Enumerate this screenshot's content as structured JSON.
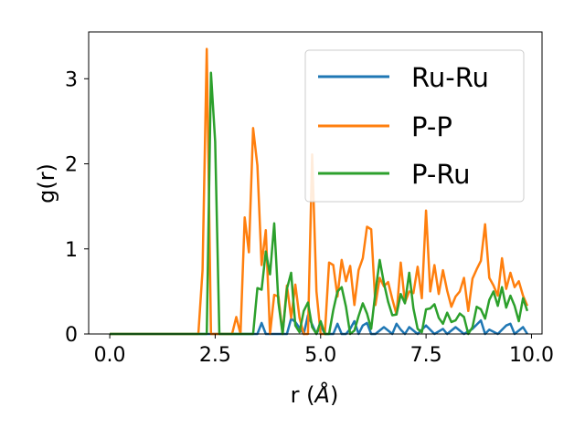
{
  "chart_data": {
    "type": "line",
    "title": "",
    "xlabel": "r (",
    "xlabel_unit": "Å",
    "xlabel_close": ")",
    "ylabel": "g(r)",
    "xlim": [
      -0.5,
      10.25
    ],
    "ylim": [
      0,
      3.55
    ],
    "xticks": [
      0.0,
      2.5,
      5.0,
      7.5,
      10.0
    ],
    "xtick_labels": [
      "0.0",
      "2.5",
      "5.0",
      "7.5",
      "10.0"
    ],
    "yticks": [
      0,
      1,
      2,
      3
    ],
    "ytick_labels": [
      "0",
      "1",
      "2",
      "3"
    ],
    "grid": false,
    "legend_position": "top-right",
    "series": [
      {
        "name": "Ru-Ru",
        "color": "#1f77b4",
        "x": [
          0.0,
          1.0,
          2.0,
          3.3,
          3.5,
          3.6,
          3.7,
          3.8,
          4.0,
          4.2,
          4.3,
          4.4,
          4.6,
          4.7,
          4.8,
          4.9,
          5.0,
          5.1,
          5.3,
          5.4,
          5.5,
          5.6,
          5.7,
          5.8,
          5.9,
          6.0,
          6.1,
          6.2,
          6.3,
          6.5,
          6.7,
          6.8,
          6.9,
          7.0,
          7.1,
          7.3,
          7.5,
          7.7,
          7.9,
          8.0,
          8.2,
          8.4,
          8.6,
          8.8,
          8.9,
          9.0,
          9.2,
          9.4,
          9.5,
          9.6,
          9.8,
          9.9
        ],
        "y": [
          0.0,
          0.0,
          0.0,
          0.0,
          0.0,
          0.13,
          0.0,
          0.0,
          0.0,
          0.0,
          0.18,
          0.14,
          0.0,
          0.22,
          0.11,
          0.0,
          0.1,
          0.0,
          0.0,
          0.12,
          0.0,
          0.0,
          0.06,
          0.15,
          0.0,
          0.1,
          0.13,
          0.0,
          0.0,
          0.08,
          0.0,
          0.12,
          0.05,
          0.0,
          0.08,
          0.0,
          0.1,
          0.0,
          0.06,
          0.0,
          0.08,
          0.0,
          0.06,
          0.16,
          0.0,
          0.05,
          0.0,
          0.1,
          0.12,
          0.0,
          0.08,
          0.0
        ]
      },
      {
        "name": "P-P",
        "color": "#ff7f0e",
        "x": [
          0.0,
          1.0,
          2.0,
          2.1,
          2.2,
          2.3,
          2.4,
          2.5,
          2.6,
          2.8,
          2.9,
          3.0,
          3.1,
          3.2,
          3.3,
          3.4,
          3.5,
          3.6,
          3.7,
          3.8,
          3.9,
          4.0,
          4.1,
          4.2,
          4.3,
          4.4,
          4.5,
          4.6,
          4.7,
          4.8,
          4.9,
          5.0,
          5.1,
          5.2,
          5.3,
          5.4,
          5.5,
          5.6,
          5.7,
          5.8,
          5.9,
          6.0,
          6.1,
          6.2,
          6.3,
          6.4,
          6.5,
          6.6,
          6.7,
          6.8,
          6.9,
          7.0,
          7.1,
          7.2,
          7.3,
          7.4,
          7.5,
          7.6,
          7.7,
          7.8,
          7.9,
          8.0,
          8.1,
          8.2,
          8.3,
          8.4,
          8.5,
          8.6,
          8.7,
          8.8,
          8.9,
          9.0,
          9.1,
          9.2,
          9.3,
          9.4,
          9.5,
          9.6,
          9.7,
          9.8,
          9.9
        ],
        "y": [
          0.0,
          0.0,
          0.0,
          0.0,
          0.75,
          3.35,
          0.0,
          0.0,
          0.0,
          0.0,
          0.0,
          0.2,
          0.0,
          1.37,
          0.96,
          2.42,
          1.98,
          0.81,
          1.22,
          0.0,
          0.46,
          0.44,
          0.0,
          0.57,
          0.19,
          0.58,
          0.19,
          0.0,
          0.0,
          2.11,
          0.5,
          0.0,
          0.0,
          0.84,
          0.81,
          0.44,
          0.87,
          0.62,
          0.8,
          0.34,
          0.75,
          0.89,
          1.26,
          1.23,
          0.34,
          0.66,
          0.56,
          0.61,
          0.41,
          0.23,
          0.84,
          0.37,
          0.5,
          0.48,
          0.79,
          0.42,
          1.45,
          0.5,
          0.81,
          0.47,
          0.75,
          0.51,
          0.32,
          0.44,
          0.5,
          0.66,
          0.27,
          0.65,
          0.76,
          0.86,
          1.29,
          0.66,
          0.57,
          0.45,
          0.89,
          0.53,
          0.72,
          0.55,
          0.62,
          0.45,
          0.33
        ]
      },
      {
        "name": "P-Ru",
        "color": "#2ca02c",
        "x": [
          0.0,
          1.0,
          2.0,
          2.3,
          2.4,
          2.5,
          2.6,
          2.8,
          3.0,
          3.2,
          3.3,
          3.4,
          3.5,
          3.6,
          3.7,
          3.8,
          3.9,
          4.0,
          4.1,
          4.2,
          4.3,
          4.4,
          4.5,
          4.6,
          4.7,
          4.8,
          4.9,
          5.0,
          5.1,
          5.2,
          5.3,
          5.4,
          5.5,
          5.6,
          5.7,
          5.8,
          5.9,
          6.0,
          6.1,
          6.2,
          6.3,
          6.4,
          6.5,
          6.6,
          6.7,
          6.8,
          6.9,
          7.0,
          7.1,
          7.2,
          7.3,
          7.4,
          7.5,
          7.6,
          7.7,
          7.8,
          7.9,
          8.0,
          8.1,
          8.2,
          8.3,
          8.4,
          8.5,
          8.6,
          8.7,
          8.8,
          8.9,
          9.0,
          9.1,
          9.2,
          9.3,
          9.4,
          9.5,
          9.6,
          9.7,
          9.8,
          9.9
        ],
        "y": [
          0.0,
          0.0,
          0.0,
          0.0,
          3.07,
          2.26,
          0.0,
          0.0,
          0.0,
          0.0,
          0.0,
          0.0,
          0.54,
          0.52,
          0.97,
          0.7,
          1.3,
          0.37,
          0.0,
          0.53,
          0.72,
          0.1,
          0.02,
          0.27,
          0.37,
          0.08,
          0.0,
          0.15,
          0.0,
          0.0,
          0.28,
          0.5,
          0.55,
          0.32,
          0.0,
          0.04,
          0.21,
          0.36,
          0.24,
          0.06,
          0.49,
          0.87,
          0.6,
          0.38,
          0.22,
          0.23,
          0.47,
          0.36,
          0.72,
          0.3,
          0.06,
          0.02,
          0.29,
          0.3,
          0.35,
          0.19,
          0.12,
          0.25,
          0.14,
          0.16,
          0.24,
          0.2,
          0.0,
          0.08,
          0.32,
          0.29,
          0.18,
          0.4,
          0.5,
          0.33,
          0.55,
          0.31,
          0.45,
          0.33,
          0.15,
          0.42,
          0.27
        ]
      }
    ]
  }
}
